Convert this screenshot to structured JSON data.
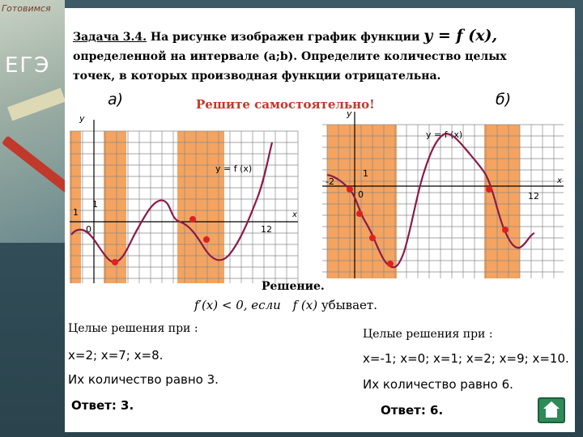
{
  "branding": {
    "top_text": "Готовимся",
    "logo_text": "ЕГЭ"
  },
  "task": {
    "head": "Задача 3.4.",
    "line1": " На рисунке изображен график функции ",
    "yfx": "y = f (x),",
    "line2": "определенной на интервале (a;b). Определите количество целых точек, в которых производная функции отрицательна."
  },
  "label_a": "а)",
  "label_b": "б)",
  "self_solve": "Решите самостоятельно!",
  "graph_a": {
    "axis_y": "y",
    "axis_x": "x",
    "fn_label": "y = f (x)",
    "tick_one": "1",
    "tick_one_x": "1",
    "tick_zero": "0",
    "tick_12": "12"
  },
  "graph_b": {
    "axis_y": "y",
    "axis_x": "x",
    "fn_label": "y = f (x)",
    "tick_one": "1",
    "tick_neg2": "-2",
    "tick_zero": "0",
    "tick_12": "12"
  },
  "solution": {
    "title": "Решение.",
    "cond_left": "f′(x) < 0, если",
    "cond_fx": "f (x)",
    "cond_right": "убывает."
  },
  "left": {
    "heading": "Целые решения при :",
    "answers": "x=2; x=7; x=8.",
    "count": "Их количество равно 3.",
    "answer_label": "Ответ",
    "answer_value": ": 3."
  },
  "right": {
    "heading": "Целые решения при :",
    "answers": "x=-1; x=0; x=1; x=2; x=9; x=10.",
    "count": "Их количество равно 6.",
    "answer_label": "Ответ",
    "answer_value": ": 6."
  },
  "colors": {
    "shade": "#f4a460",
    "curve": "#8b1a4a",
    "point": "#e02020",
    "grid": "#888888"
  }
}
